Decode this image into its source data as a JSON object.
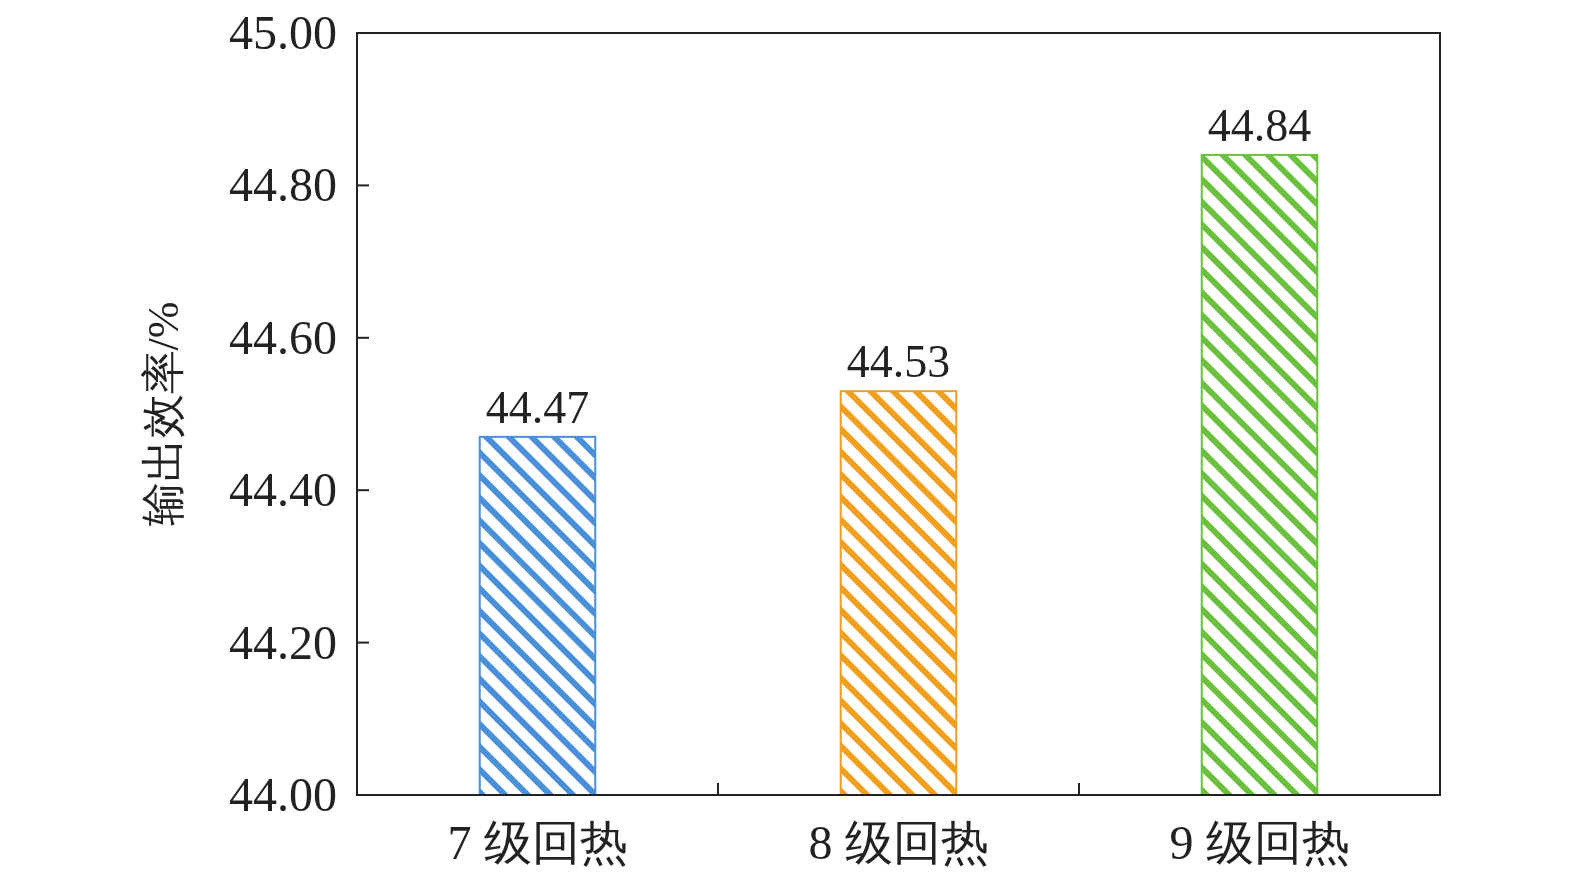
{
  "chart_data": {
    "type": "bar",
    "ylabel": "输出效率/%",
    "categories": [
      "7 级回热",
      "8 级回热",
      "9 级回热"
    ],
    "values": [
      44.47,
      44.53,
      44.84
    ],
    "colors": [
      "#4a90d9",
      "#f0a020",
      "#6cc040"
    ],
    "ylim": [
      44,
      45
    ],
    "yticks": [
      {
        "value": 44,
        "label": "44.00"
      },
      {
        "value": 44.2,
        "label": "44.20"
      },
      {
        "value": 44.4,
        "label": "44.40"
      },
      {
        "value": 44.6,
        "label": "44.60"
      },
      {
        "value": 44.8,
        "label": "44.80"
      },
      {
        "value": 45,
        "label": "45.00"
      }
    ],
    "data_labels": true
  }
}
